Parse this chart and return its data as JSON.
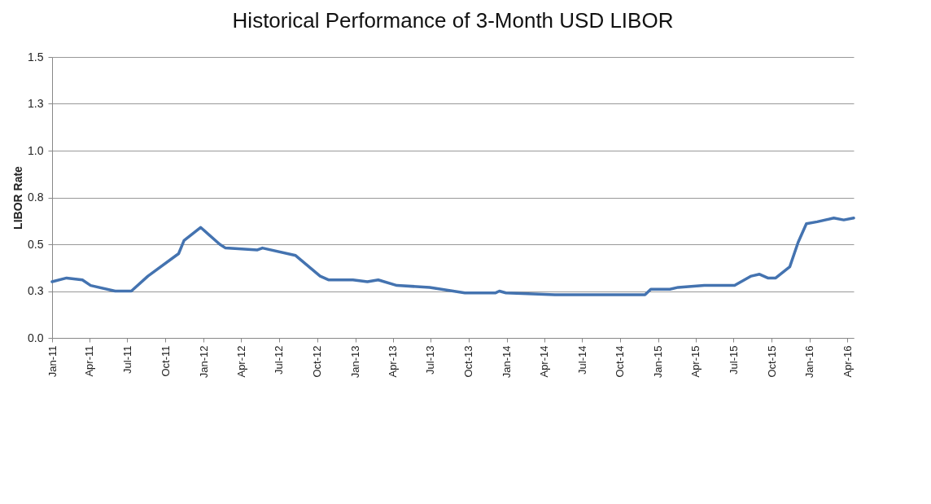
{
  "chart_data": {
    "type": "line",
    "title": "Historical Performance of 3-Month USD LIBOR",
    "ylabel": "LIBOR Rate",
    "x": [
      "2011-01-01",
      "2011-02-05",
      "2011-03-15",
      "2011-04-04",
      "2011-06-02",
      "2011-07-11",
      "2011-08-20",
      "2011-11-02",
      "2011-11-15",
      "2011-12-25",
      "2012-02-09",
      "2012-02-23",
      "2012-05-10",
      "2012-05-22",
      "2012-08-10",
      "2012-10-08",
      "2012-10-28",
      "2012-12-26",
      "2013-01-30",
      "2013-02-25",
      "2013-04-11",
      "2013-06-29",
      "2013-09-22",
      "2013-12-04",
      "2013-12-14",
      "2013-12-30",
      "2014-04-27",
      "2014-07-14",
      "2014-11-30",
      "2014-12-14",
      "2015-01-29",
      "2015-02-18",
      "2015-04-22",
      "2015-07-04",
      "2015-08-13",
      "2015-09-02",
      "2015-09-22",
      "2015-10-11",
      "2015-11-14",
      "2015-12-04",
      "2015-12-24",
      "2016-01-19",
      "2016-02-28",
      "2016-03-23",
      "2016-04-16"
    ],
    "series": [
      {
        "color": "#4473b0",
        "values": [
          0.3,
          0.32,
          0.31,
          0.28,
          0.25,
          0.25,
          0.33,
          0.45,
          0.52,
          0.59,
          0.5,
          0.48,
          0.47,
          0.48,
          0.44,
          0.33,
          0.31,
          0.31,
          0.3,
          0.31,
          0.28,
          0.27,
          0.24,
          0.24,
          0.25,
          0.24,
          0.23,
          0.23,
          0.23,
          0.26,
          0.26,
          0.27,
          0.28,
          0.28,
          0.33,
          0.34,
          0.32,
          0.32,
          0.38,
          0.51,
          0.61,
          0.62,
          0.64,
          0.63,
          0.64
        ]
      }
    ],
    "xlim": [
      "2011-01-01",
      "2016-04-16"
    ],
    "xticks": [
      {
        "value": "2011-01-01",
        "label": "Jan-11"
      },
      {
        "value": "2011-04-01",
        "label": "Apr-11"
      },
      {
        "value": "2011-07-01",
        "label": "Jul-11"
      },
      {
        "value": "2011-10-01",
        "label": "Oct-11"
      },
      {
        "value": "2012-01-01",
        "label": "Jan-12"
      },
      {
        "value": "2012-04-01",
        "label": "Apr-12"
      },
      {
        "value": "2012-07-01",
        "label": "Jul-12"
      },
      {
        "value": "2012-10-01",
        "label": "Oct-12"
      },
      {
        "value": "2013-01-01",
        "label": "Jan-13"
      },
      {
        "value": "2013-04-01",
        "label": "Apr-13"
      },
      {
        "value": "2013-07-01",
        "label": "Jul-13"
      },
      {
        "value": "2013-10-01",
        "label": "Oct-13"
      },
      {
        "value": "2014-01-01",
        "label": "Jan-14"
      },
      {
        "value": "2014-04-01",
        "label": "Apr-14"
      },
      {
        "value": "2014-07-01",
        "label": "Jul-14"
      },
      {
        "value": "2014-10-01",
        "label": "Oct-14"
      },
      {
        "value": "2015-01-01",
        "label": "Jan-15"
      },
      {
        "value": "2015-04-01",
        "label": "Apr-15"
      },
      {
        "value": "2015-07-01",
        "label": "Jul-15"
      },
      {
        "value": "2015-10-01",
        "label": "Oct-15"
      },
      {
        "value": "2016-01-01",
        "label": "Jan-16"
      },
      {
        "value": "2016-04-01",
        "label": "Apr-16"
      }
    ],
    "ylim": [
      0,
      1.5
    ],
    "yticks": [
      {
        "value": 0,
        "label": "0.0"
      },
      {
        "value": 0.25,
        "label": "0.3"
      },
      {
        "value": 0.5,
        "label": "0.5"
      },
      {
        "value": 0.75,
        "label": "0.8"
      },
      {
        "value": 1.0,
        "label": "1.0"
      },
      {
        "value": 1.25,
        "label": "1.3"
      },
      {
        "value": 1.5,
        "label": "1.5"
      }
    ],
    "grid": "y"
  }
}
